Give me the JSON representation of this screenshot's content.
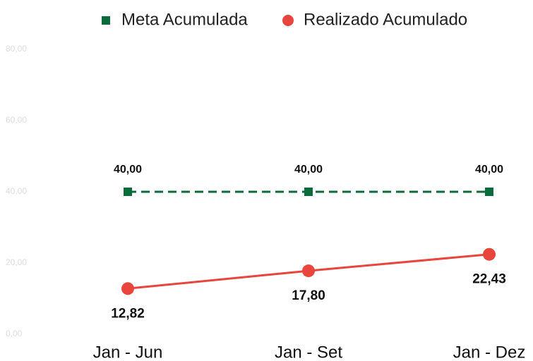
{
  "chart_data": {
    "type": "line",
    "categories": [
      "Jan - Jun",
      "Jan - Set",
      "Jan - Dez"
    ],
    "series": [
      {
        "name": "Meta Acumulada",
        "color": "#0b6b3a",
        "dashed": true,
        "marker": "square",
        "values": [
          40,
          40,
          40
        ],
        "value_labels": [
          "40,00",
          "40,00",
          "40,00"
        ]
      },
      {
        "name": "Realizado Acumulado",
        "color": "#e8453c",
        "dashed": false,
        "marker": "circle",
        "values": [
          12.82,
          17.8,
          22.43
        ],
        "value_labels": [
          "12,82",
          "17,80",
          "22,43"
        ]
      }
    ],
    "ylim": [
      0,
      80
    ],
    "yticks": [
      {
        "value": 0,
        "label": "0,00"
      },
      {
        "value": 20,
        "label": "20,00"
      },
      {
        "value": 40,
        "label": "40,00"
      },
      {
        "value": 60,
        "label": "60,00"
      },
      {
        "value": 80,
        "label": "80,00"
      }
    ],
    "grid": false
  }
}
